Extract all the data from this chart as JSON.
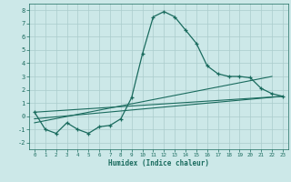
{
  "title": "",
  "xlabel": "Humidex (Indice chaleur)",
  "ylabel": "",
  "background_color": "#cce8e8",
  "grid_color": "#aacccc",
  "line_color": "#1a6b5e",
  "xlim": [
    -0.5,
    23.5
  ],
  "ylim": [
    -2.5,
    8.5
  ],
  "xticks": [
    0,
    1,
    2,
    3,
    4,
    5,
    6,
    7,
    8,
    9,
    10,
    11,
    12,
    13,
    14,
    15,
    16,
    17,
    18,
    19,
    20,
    21,
    22,
    23
  ],
  "yticks": [
    -2,
    -1,
    0,
    1,
    2,
    3,
    4,
    5,
    6,
    7,
    8
  ],
  "main_line": {
    "x": [
      0,
      1,
      2,
      3,
      4,
      5,
      6,
      7,
      8,
      9,
      10,
      11,
      12,
      13,
      14,
      15,
      16,
      17,
      18,
      19,
      20,
      21,
      22,
      23
    ],
    "y": [
      0.3,
      -1.0,
      -1.3,
      -0.5,
      -1.0,
      -1.3,
      -0.8,
      -0.7,
      -0.2,
      1.4,
      4.7,
      7.5,
      7.9,
      7.5,
      6.5,
      5.5,
      3.8,
      3.2,
      3.0,
      3.0,
      2.9,
      2.1,
      1.7,
      1.5
    ]
  },
  "straight_lines": [
    {
      "x": [
        0,
        23
      ],
      "y": [
        0.3,
        1.5
      ]
    },
    {
      "x": [
        0,
        23
      ],
      "y": [
        -0.2,
        1.5
      ]
    },
    {
      "x": [
        0,
        22
      ],
      "y": [
        -0.5,
        3.0
      ]
    }
  ]
}
